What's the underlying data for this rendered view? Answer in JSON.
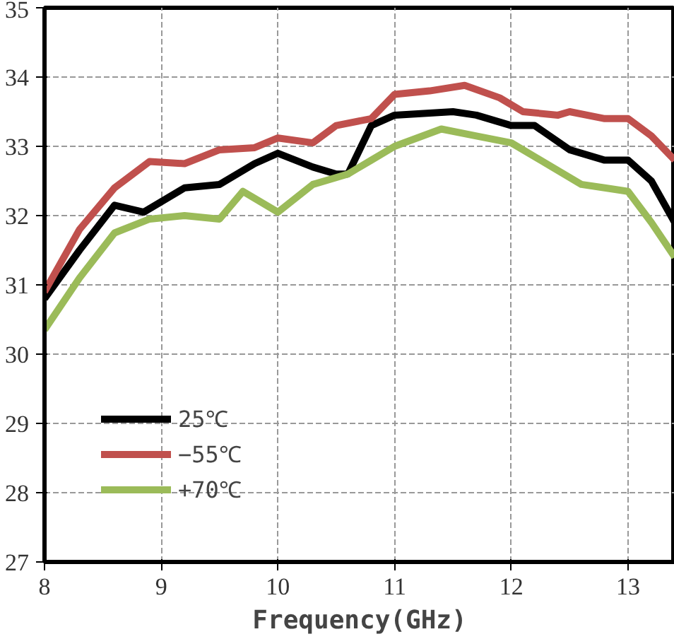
{
  "chart_data": {
    "type": "line",
    "xlabel": "Frequency(GHz)",
    "xlim": [
      8,
      13.4
    ],
    "ylim": [
      27,
      35
    ],
    "xticks": [
      8,
      9,
      10,
      11,
      12,
      13
    ],
    "yticks": [
      27,
      28,
      29,
      30,
      31,
      32,
      33,
      34,
      35
    ],
    "grid": true,
    "legend": "bottom left",
    "marker": "none",
    "line_style": "solid",
    "series": [
      {
        "name": "25℃",
        "color": "#000000",
        "x": [
          8.0,
          8.3,
          8.6,
          8.85,
          9.2,
          9.5,
          9.8,
          10.0,
          10.3,
          10.5,
          10.6,
          10.8,
          11.0,
          11.5,
          11.7,
          12.0,
          12.2,
          12.5,
          12.8,
          13.0,
          13.2,
          13.4
        ],
        "values": [
          30.8,
          31.5,
          32.15,
          32.05,
          32.4,
          32.45,
          32.75,
          32.9,
          32.7,
          32.6,
          32.6,
          33.3,
          33.45,
          33.5,
          33.45,
          33.3,
          33.3,
          32.95,
          32.8,
          32.8,
          32.5,
          31.9
        ]
      },
      {
        "name": "−55℃",
        "color": "#c0504d",
        "x": [
          8.0,
          8.3,
          8.6,
          8.9,
          9.2,
          9.5,
          9.8,
          10.0,
          10.3,
          10.5,
          10.8,
          11.0,
          11.3,
          11.6,
          11.9,
          12.1,
          12.4,
          12.5,
          12.8,
          13.0,
          13.2,
          13.4
        ],
        "values": [
          30.9,
          31.8,
          32.4,
          32.78,
          32.75,
          32.95,
          32.98,
          33.12,
          33.05,
          33.3,
          33.4,
          33.75,
          33.8,
          33.88,
          33.7,
          33.5,
          33.45,
          33.5,
          33.4,
          33.4,
          33.15,
          32.8
        ]
      },
      {
        "name": "+70℃",
        "color": "#9bbb59",
        "x": [
          8.0,
          8.3,
          8.6,
          8.9,
          9.2,
          9.5,
          9.7,
          10.0,
          10.3,
          10.6,
          10.8,
          11.0,
          11.4,
          11.7,
          12.0,
          12.3,
          12.6,
          12.8,
          13.0,
          13.2,
          13.4
        ],
        "values": [
          30.35,
          31.1,
          31.75,
          31.95,
          32.0,
          31.95,
          32.35,
          32.05,
          32.45,
          32.6,
          32.8,
          33.0,
          33.25,
          33.15,
          33.05,
          32.75,
          32.45,
          32.4,
          32.35,
          31.9,
          31.4
        ]
      }
    ]
  }
}
